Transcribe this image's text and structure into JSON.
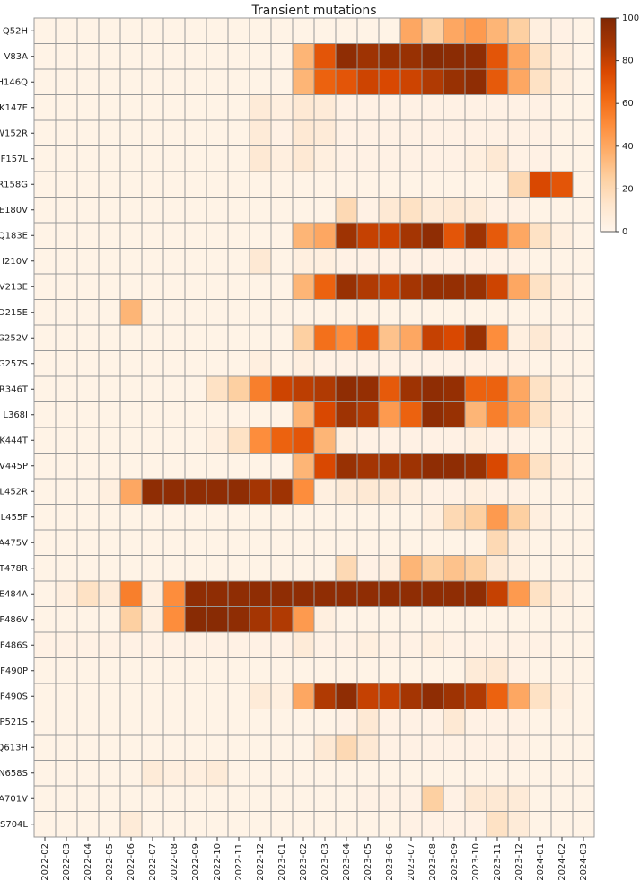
{
  "chart_data": {
    "type": "heatmap",
    "title": "Transient mutations",
    "x": [
      "2022-02",
      "2022-03",
      "2022-04",
      "2022-05",
      "2022-06",
      "2022-07",
      "2022-08",
      "2022-09",
      "2022-10",
      "2022-11",
      "2022-12",
      "2023-01",
      "2023-02",
      "2023-03",
      "2023-04",
      "2023-05",
      "2023-06",
      "2023-07",
      "2023-08",
      "2023-09",
      "2023-10",
      "2023-11",
      "2023-12",
      "2024-01",
      "2024-02",
      "2024-03"
    ],
    "categories": [
      "Q52H",
      "V83A",
      "H146Q",
      "K147E",
      "W152R",
      "F157L",
      "R158G",
      "E180V",
      "Q183E",
      "I210V",
      "V213E",
      "D215E",
      "G252V",
      "G257S",
      "R346T",
      "L368I",
      "K444T",
      "V445P",
      "L452R",
      "L455F",
      "A475V",
      "T478R",
      "E484A",
      "F486V",
      "F486S",
      "F490P",
      "F490S",
      "P521S",
      "Q613H",
      "N658S",
      "A701V",
      "S704L"
    ],
    "values": [
      [
        2,
        2,
        2,
        2,
        2,
        2,
        2,
        2,
        2,
        2,
        2,
        2,
        2,
        2,
        2,
        2,
        2,
        40,
        25,
        40,
        45,
        35,
        25,
        5,
        3,
        2
      ],
      [
        2,
        2,
        2,
        2,
        2,
        2,
        2,
        2,
        2,
        2,
        2,
        2,
        35,
        70,
        95,
        90,
        92,
        92,
        97,
        96,
        95,
        70,
        40,
        15,
        5,
        2
      ],
      [
        2,
        2,
        2,
        2,
        2,
        2,
        2,
        2,
        2,
        2,
        2,
        2,
        35,
        65,
        70,
        78,
        75,
        78,
        85,
        92,
        95,
        68,
        40,
        15,
        5,
        2
      ],
      [
        2,
        2,
        2,
        2,
        2,
        2,
        2,
        2,
        2,
        2,
        8,
        5,
        10,
        8,
        3,
        3,
        3,
        3,
        3,
        3,
        3,
        3,
        3,
        3,
        2,
        2
      ],
      [
        2,
        2,
        2,
        2,
        2,
        2,
        2,
        2,
        2,
        2,
        8,
        3,
        10,
        8,
        3,
        3,
        3,
        3,
        3,
        3,
        3,
        3,
        3,
        3,
        2,
        2
      ],
      [
        2,
        2,
        2,
        2,
        2,
        2,
        2,
        2,
        2,
        2,
        10,
        5,
        10,
        5,
        3,
        3,
        3,
        3,
        3,
        3,
        5,
        10,
        3,
        3,
        2,
        2
      ],
      [
        2,
        2,
        2,
        2,
        2,
        2,
        2,
        2,
        2,
        2,
        2,
        2,
        2,
        2,
        2,
        2,
        2,
        2,
        2,
        2,
        2,
        2,
        20,
        75,
        70,
        2
      ],
      [
        2,
        2,
        2,
        2,
        2,
        2,
        2,
        2,
        2,
        2,
        2,
        2,
        2,
        2,
        20,
        3,
        10,
        15,
        8,
        10,
        8,
        3,
        3,
        2,
        2,
        2
      ],
      [
        2,
        2,
        2,
        2,
        2,
        2,
        2,
        2,
        2,
        2,
        2,
        2,
        35,
        40,
        90,
        80,
        78,
        88,
        95,
        70,
        90,
        68,
        40,
        15,
        5,
        2
      ],
      [
        2,
        2,
        2,
        2,
        2,
        2,
        2,
        2,
        2,
        2,
        10,
        2,
        5,
        5,
        3,
        3,
        3,
        3,
        3,
        3,
        3,
        3,
        3,
        2,
        2,
        2
      ],
      [
        2,
        2,
        2,
        2,
        2,
        2,
        2,
        2,
        2,
        2,
        2,
        2,
        35,
        65,
        92,
        85,
        80,
        88,
        93,
        93,
        92,
        78,
        40,
        15,
        5,
        2
      ],
      [
        2,
        2,
        2,
        2,
        35,
        2,
        2,
        2,
        2,
        2,
        2,
        2,
        2,
        2,
        2,
        2,
        2,
        2,
        2,
        2,
        2,
        2,
        2,
        2,
        2,
        2
      ],
      [
        2,
        2,
        2,
        2,
        2,
        2,
        2,
        2,
        2,
        2,
        2,
        2,
        25,
        60,
        50,
        70,
        30,
        40,
        80,
        75,
        92,
        50,
        5,
        10,
        3,
        2
      ],
      [
        2,
        2,
        2,
        2,
        2,
        2,
        2,
        2,
        2,
        2,
        5,
        2,
        5,
        3,
        3,
        3,
        3,
        3,
        3,
        3,
        3,
        3,
        3,
        2,
        2,
        2
      ],
      [
        2,
        2,
        2,
        2,
        2,
        2,
        2,
        2,
        15,
        25,
        55,
        78,
        82,
        85,
        95,
        93,
        68,
        90,
        95,
        93,
        65,
        65,
        40,
        15,
        5,
        2
      ],
      [
        2,
        2,
        2,
        2,
        2,
        2,
        2,
        2,
        2,
        2,
        2,
        2,
        35,
        75,
        90,
        85,
        45,
        65,
        95,
        92,
        35,
        55,
        40,
        15,
        5,
        2
      ],
      [
        2,
        2,
        2,
        2,
        2,
        2,
        2,
        2,
        5,
        15,
        50,
        65,
        70,
        35,
        5,
        3,
        3,
        3,
        3,
        3,
        5,
        3,
        3,
        2,
        2,
        2
      ],
      [
        2,
        2,
        2,
        2,
        2,
        2,
        2,
        2,
        2,
        2,
        2,
        2,
        35,
        75,
        92,
        88,
        88,
        90,
        95,
        95,
        92,
        75,
        40,
        15,
        5,
        2
      ],
      [
        2,
        2,
        2,
        5,
        40,
        95,
        95,
        95,
        95,
        95,
        88,
        90,
        50,
        5,
        8,
        10,
        8,
        5,
        3,
        3,
        5,
        3,
        3,
        2,
        2,
        2
      ],
      [
        2,
        2,
        2,
        2,
        2,
        2,
        2,
        2,
        2,
        2,
        2,
        2,
        2,
        2,
        2,
        2,
        2,
        2,
        5,
        20,
        25,
        45,
        25,
        5,
        2,
        2
      ],
      [
        2,
        2,
        2,
        2,
        2,
        2,
        2,
        2,
        2,
        2,
        2,
        2,
        2,
        2,
        2,
        2,
        2,
        2,
        2,
        2,
        2,
        20,
        5,
        2,
        2,
        2
      ],
      [
        2,
        2,
        2,
        2,
        2,
        2,
        2,
        2,
        2,
        2,
        2,
        2,
        2,
        2,
        20,
        3,
        5,
        35,
        25,
        30,
        25,
        10,
        5,
        2,
        2,
        2
      ],
      [
        2,
        5,
        15,
        8,
        55,
        5,
        50,
        95,
        95,
        95,
        95,
        95,
        95,
        95,
        95,
        95,
        95,
        95,
        95,
        95,
        95,
        80,
        45,
        15,
        5,
        2
      ],
      [
        2,
        2,
        2,
        2,
        25,
        5,
        50,
        97,
        97,
        95,
        88,
        85,
        45,
        5,
        2,
        2,
        2,
        2,
        2,
        2,
        2,
        2,
        2,
        2,
        2,
        2
      ],
      [
        3,
        3,
        3,
        3,
        3,
        3,
        3,
        3,
        3,
        3,
        3,
        3,
        8,
        3,
        3,
        5,
        3,
        3,
        5,
        3,
        3,
        3,
        3,
        3,
        2,
        2
      ],
      [
        2,
        2,
        2,
        2,
        2,
        2,
        2,
        2,
        2,
        2,
        2,
        2,
        2,
        2,
        2,
        2,
        2,
        2,
        2,
        2,
        8,
        10,
        3,
        2,
        2,
        2
      ],
      [
        2,
        2,
        2,
        2,
        2,
        2,
        2,
        2,
        2,
        2,
        8,
        5,
        40,
        85,
        95,
        80,
        80,
        88,
        95,
        90,
        85,
        65,
        40,
        15,
        5,
        2
      ],
      [
        2,
        2,
        2,
        2,
        2,
        2,
        2,
        2,
        2,
        2,
        2,
        2,
        2,
        2,
        3,
        10,
        3,
        3,
        3,
        10,
        3,
        3,
        3,
        2,
        2,
        2
      ],
      [
        2,
        2,
        2,
        2,
        2,
        2,
        2,
        2,
        2,
        2,
        2,
        2,
        2,
        10,
        20,
        10,
        3,
        3,
        3,
        3,
        3,
        3,
        3,
        2,
        2,
        2
      ],
      [
        2,
        2,
        2,
        2,
        2,
        8,
        5,
        5,
        8,
        2,
        2,
        2,
        2,
        2,
        2,
        2,
        2,
        2,
        2,
        2,
        2,
        2,
        2,
        2,
        2,
        2
      ],
      [
        2,
        2,
        2,
        2,
        2,
        2,
        2,
        2,
        2,
        2,
        2,
        2,
        2,
        2,
        2,
        3,
        3,
        3,
        25,
        3,
        10,
        10,
        8,
        2,
        2,
        2
      ],
      [
        2,
        2,
        2,
        2,
        8,
        2,
        2,
        2,
        2,
        2,
        2,
        2,
        2,
        2,
        2,
        2,
        2,
        3,
        3,
        3,
        3,
        15,
        8,
        2,
        2,
        2
      ]
    ],
    "colormap": [
      "#fff5eb",
      "#fee6ce",
      "#fdd0a2",
      "#fdae6b",
      "#fd8d3c",
      "#f16913",
      "#d94801",
      "#a63603",
      "#7f2704"
    ],
    "clim": [
      0,
      100
    ],
    "cticks": [
      0,
      20,
      40,
      60,
      80,
      100
    ]
  }
}
